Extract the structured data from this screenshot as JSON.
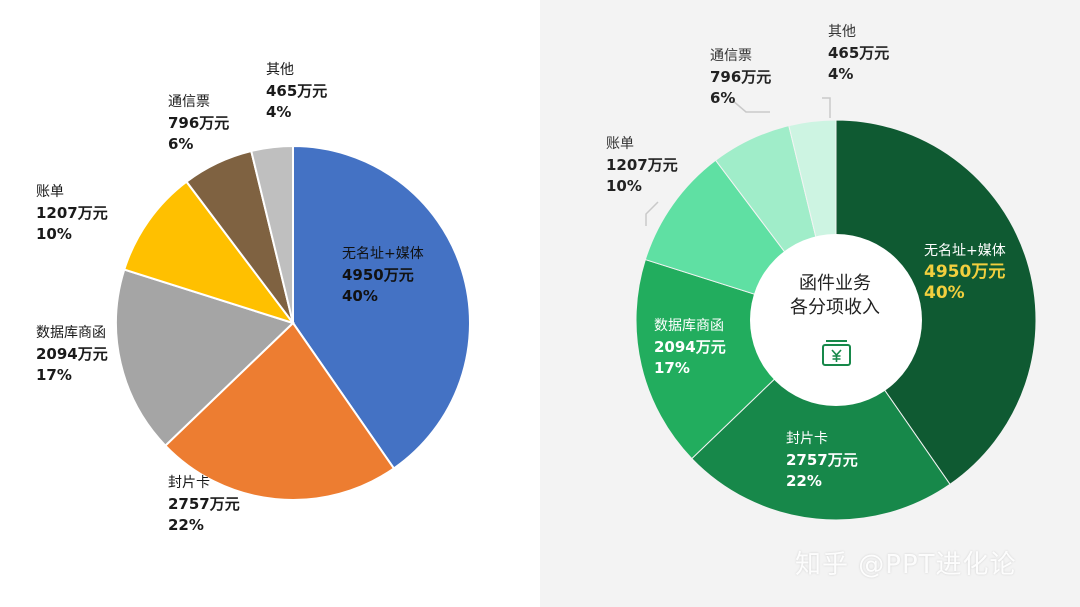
{
  "chart_data": [
    {
      "type": "pie",
      "title": "",
      "categories": [
        "无名址+媒体",
        "封片卡",
        "数据库商函",
        "账单",
        "通信票",
        "其他"
      ],
      "values": [
        4950,
        2757,
        2094,
        1207,
        796,
        465
      ],
      "value_labels": [
        "4950万元",
        "2757万元",
        "2094万元",
        "1207万元",
        "796万元",
        "465万元"
      ],
      "percent_labels": [
        "40%",
        "22%",
        "17%",
        "10%",
        "6%",
        "4%"
      ],
      "colors": [
        "#4472c4",
        "#ed7d31",
        "#a5a5a5",
        "#ffc000",
        "#7f6241",
        "#bfbfbf"
      ]
    },
    {
      "type": "pie",
      "title": "函件业务各分项收入",
      "categories": [
        "无名址+媒体",
        "封片卡",
        "数据库商函",
        "账单",
        "通信票",
        "其他"
      ],
      "values": [
        4950,
        2757,
        2094,
        1207,
        796,
        465
      ],
      "value_labels": [
        "4950万元",
        "2757万元",
        "2094万元",
        "1207万元",
        "796万元",
        "465万元"
      ],
      "percent_labels": [
        "40%",
        "22%",
        "17%",
        "10%",
        "6%",
        "4%"
      ],
      "colors": [
        "#0f5a32",
        "#17884a",
        "#22ad5e",
        "#5fe0a3",
        "#a0edc9",
        "#cdf4e2"
      ],
      "style": "donut",
      "center_title_line1": "函件业务",
      "center_title_line2": "各分项收入",
      "center_icon": "yuan-money-icon",
      "highlight_color": "#f2cf3e"
    }
  ],
  "watermark": "知乎 @PPT进化论"
}
